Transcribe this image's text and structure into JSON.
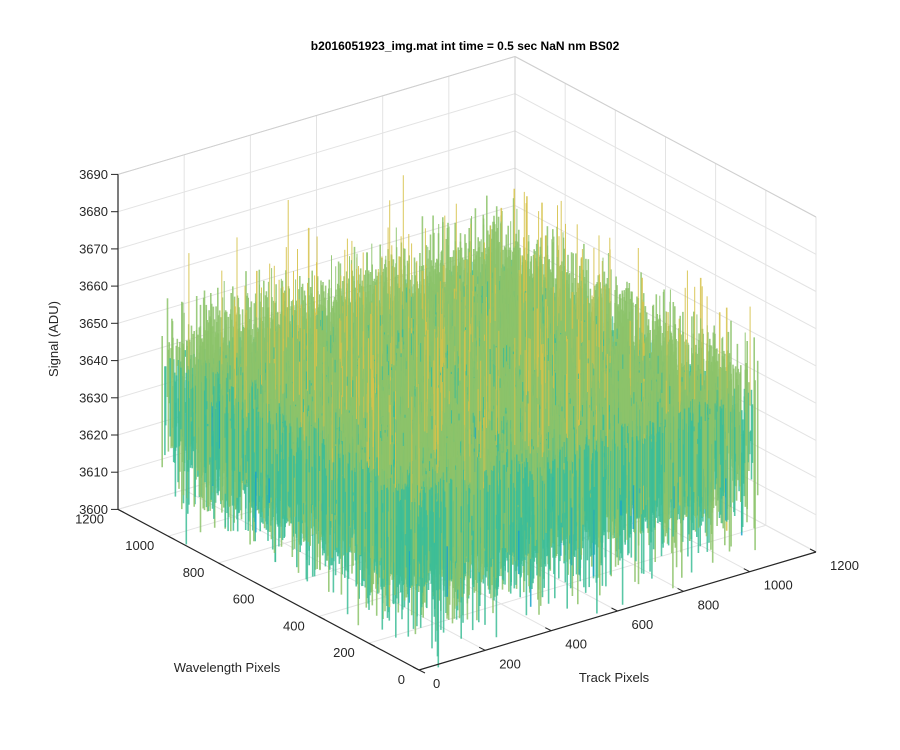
{
  "chart_data": {
    "type": "surface3d",
    "title": "b2016051923_img.mat int time = 0.5 sec  NaN nm BS02",
    "xlabel": "Track Pixels",
    "ylabel": "Wavelength Pixels",
    "zlabel": "Signal (ADU)",
    "xlim": [
      0,
      1200
    ],
    "ylim": [
      0,
      1200
    ],
    "zlim": [
      3600,
      3690
    ],
    "xticks": [
      "0",
      "200",
      "400",
      "600",
      "800",
      "1000",
      "1200"
    ],
    "yticks": [
      "0",
      "200",
      "400",
      "600",
      "800",
      "1000",
      "1200"
    ],
    "zticks": [
      "3600",
      "3610",
      "3620",
      "3630",
      "3640",
      "3650",
      "3660",
      "3670",
      "3680",
      "3690"
    ],
    "data_extent": {
      "x": [
        0,
        1024
      ],
      "y": [
        0,
        1024
      ]
    },
    "signal_mean": 3635,
    "signal_range": [
      3595,
      3685
    ],
    "grid": true,
    "colormap": "parula",
    "colors": [
      "#1f77d0",
      "#1aa3c9",
      "#3dbd96",
      "#8cc36a",
      "#d6c24a"
    ]
  }
}
